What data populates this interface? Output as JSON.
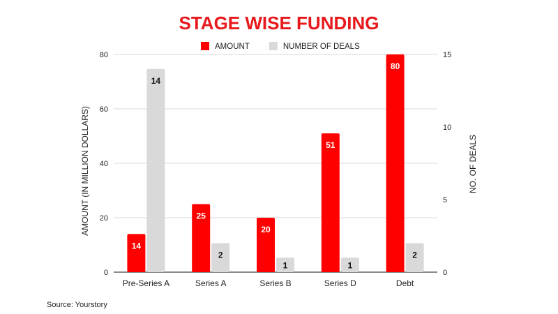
{
  "chart_data": {
    "type": "bar",
    "title": "STAGE WISE FUNDING",
    "categories": [
      "Pre-Series A",
      "Series A",
      "Series B",
      "Series D",
      "Debt"
    ],
    "series": [
      {
        "name": "AMOUNT",
        "axis": "left",
        "color": "#ff0000",
        "values": [
          14,
          25,
          20,
          51,
          80
        ],
        "label_color": "#ffffff"
      },
      {
        "name": "NUMBER OF DEALS",
        "axis": "right",
        "color": "#d9d9d9",
        "values": [
          14,
          2,
          1,
          1,
          2
        ],
        "label_color": "#111111"
      }
    ],
    "ylabel": "AMOUNT (IN MILLION DOLLARS)",
    "ylabel_right": "NO. OF DEALS",
    "ylim": [
      0,
      80
    ],
    "ylim_right": [
      0,
      15
    ],
    "yticks": [
      "0",
      "20",
      "40",
      "60",
      "80"
    ],
    "yticks_right": [
      "0",
      "5",
      "10",
      "15"
    ],
    "grid": true,
    "legend": "top"
  },
  "source": "Source: Yourstory"
}
